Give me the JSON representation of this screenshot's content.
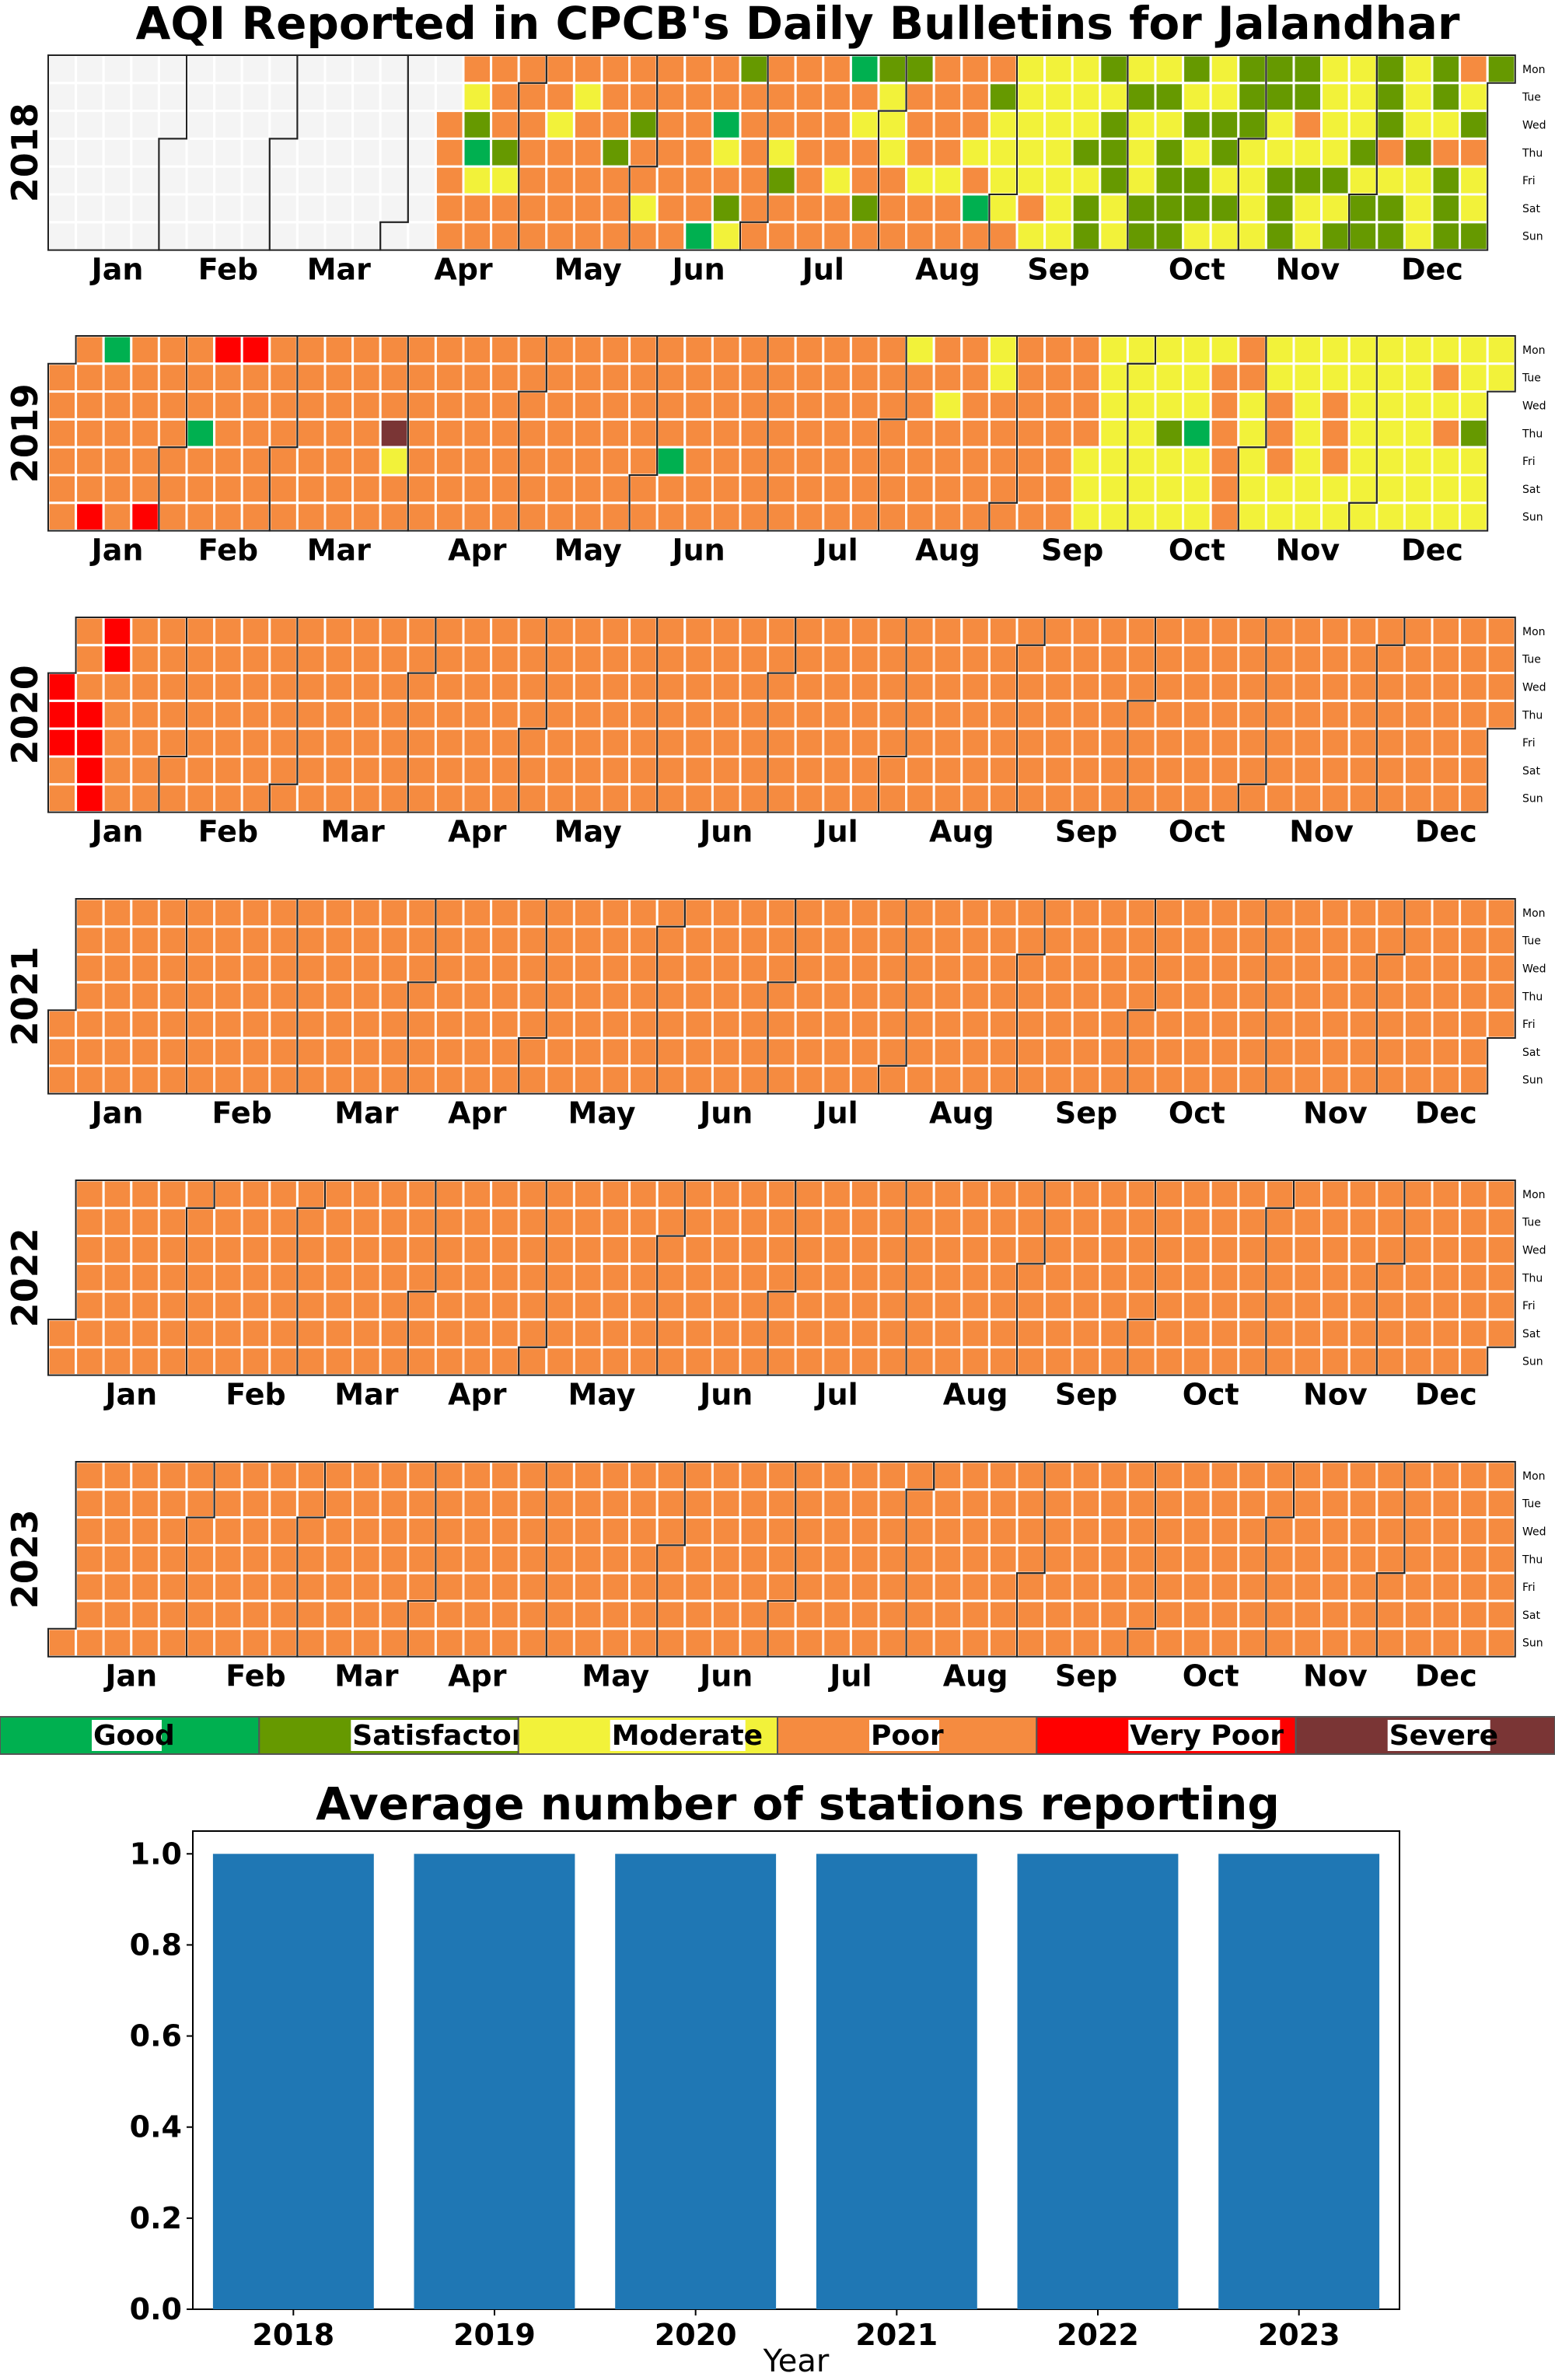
{
  "title": "AQI Reported in CPCB's Daily Bulletins for Jalandhar",
  "month_labels": [
    "Jan",
    "Feb",
    "Mar",
    "Apr",
    "May",
    "Jun",
    "Jul",
    "Aug",
    "Sep",
    "Oct",
    "Nov",
    "Dec"
  ],
  "weekday_labels": [
    "Mon",
    "Tue",
    "Wed",
    "Thu",
    "Fri",
    "Sat",
    "Sun"
  ],
  "legend": [
    {
      "label": "Good",
      "color": "#00b050"
    },
    {
      "label": "Satisfactory",
      "color": "#669900"
    },
    {
      "label": "Moderate",
      "color": "#f2f23a"
    },
    {
      "label": "Poor",
      "color": "#f58b40"
    },
    {
      "label": "Very Poor",
      "color": "#ff0000"
    },
    {
      "label": "Severe",
      "color": "#7a3535"
    }
  ],
  "no_data_color": "#f4f4f4",
  "chart_data": [
    {
      "type": "heatmap",
      "title": "AQI Reported in CPCB's Daily Bulletins for Jalandhar",
      "description": "Daily AQI category calendar heatmaps, one per year",
      "categories": [
        "Good",
        "Satisfactory",
        "Moderate",
        "Poor",
        "Very Poor",
        "Severe"
      ],
      "codes": "0=no data, 1=Good, 2=Satisfactory, 3=Moderate, 4=Poor, 5=Very Poor, 6=Severe",
      "years": [
        {
          "year": "2018",
          "days": "000000000000000000000000000000000000000000000000000000000000000000000000000000000000000000000000000044444432134444423444444444443444443444444442444442443444444444444441441342324444444443244444444444443441434424233344424443444444344444341442333343333343333333333323222322233323332232322222323223332232322233332233222224323333332323332322222432233323332234222432433224333222323332243233333333333333444444444444444444444454444444444444444444445544445444444444454444444444444444444444444444454444444444444444444444444444444444444"
        },
        {
          "year": "2019",
          "days": "4444444444445144444444444454444444444144454444445444444444444444444444444444444444444463444444444444444444444444444444444444444444444444444444444444444444444144444444444444444444444444444444444444444444444444444444443444444443444444444443344444444444444444444444333333333333333333332333333133334444444433333334443333333333344433333333333333333333333343433333323333333333433333434333333243333333334333333444444444444444545555444444454444444444444444454444444444444444444"
        },
        {
          "year": "2020",
          "days": "555444445555554444444444444444444444444444444444444444444444444444444444444444444444444444444444444444444444444444444444444444444444444444444444444444444444444444444444444444444444444444444444444444444444444444444444444444444444444444444444444444444444444444444444444444444444444444444444444444444444444444444444444444444444444444444444444444444444444444444444444444444444444444444444444444444444444444444444444444444444444444444444444444444444444444444444444444444444444444444"
        },
        {
          "year": "2021",
          "days": "444444444444444444444444444444444444444444444444444444444444444444444444444444444444444444444444444444444444444444444444444444444444444444444444444444444444444444444444444444444444444444444444444444444444444444444444444444444444444444444444444444444444444444444444444444444444444444444444444444444444444444444444444444444444444444444444444444444444444444444444444444444444444444444444444444444444444444444444444444444444444444444444444444444444444444444444444444444444444444444"
        },
        {
          "year": "2022",
          "days": "444444444444444444444444444444444444444444444444444444444444444444444444444444444444444444444444444444444444444444444444444444444444444444444444444444444444444444444444444444444444444444444444444444444444444444444444444444444444444444444444444444444444444444444444444444444444444444444444444444444444444444444444444444444444444444444444444444444444444444444444444444444444444444444444444444444444444444444444444444444444444444444444444444444444444444444444444444444444444444444"
        },
        {
          "year": "2023",
          "days": "444444444444444444444444444444444444444444444444444444444444444444444444444444444444444444444444444444444444444444444444444444444444444444444444444444444444444444444444444444444444444444444444444444444444444444444444444444444444444444444444444444444444444444444444444444444444444444444444444444444444444444444444444444444444444444444444444444444444444444444444444444444444444444444444444444444444444444444444444444444444444444444444444444444444444444444444444444444444444444444"
        }
      ]
    },
    {
      "type": "bar",
      "title": "Average number of stations reporting",
      "categories": [
        "2018",
        "2019",
        "2020",
        "2021",
        "2022",
        "2023"
      ],
      "values": [
        1.0,
        1.0,
        1.0,
        1.0,
        1.0,
        1.0
      ],
      "xlabel": "Year",
      "ylabel": "",
      "ylim": [
        0,
        1.05
      ],
      "yticks": [
        "0.0",
        "0.2",
        "0.4",
        "0.6",
        "0.8",
        "1.0"
      ],
      "bar_color": "#1f77b4"
    }
  ]
}
